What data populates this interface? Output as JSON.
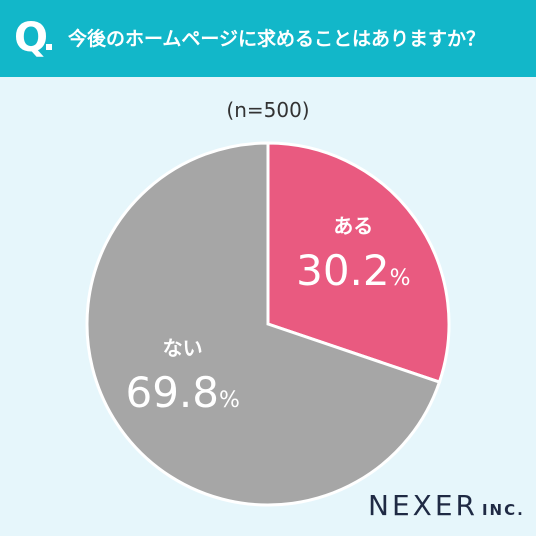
{
  "header": {
    "q_mark": "Q",
    "question": "今後のホームページに求めることはありますか？"
  },
  "chart_data": {
    "type": "pie",
    "title": "今後のホームページに求めることはありますか？",
    "subtitle": "(n=500)",
    "unit": "%",
    "slices": [
      {
        "label": "ある",
        "value": 30.2,
        "value_text": "30.2",
        "color": "#e95a80"
      },
      {
        "label": "ない",
        "value": 69.8,
        "value_text": "69.8",
        "color": "#a6a6a6"
      }
    ]
  },
  "brand": {
    "name": "NEXER",
    "suffix": "INC."
  },
  "colors": {
    "header_bg": "#12b7c9",
    "page_bg": "#e6f6fb",
    "divider": "#ffffff"
  }
}
